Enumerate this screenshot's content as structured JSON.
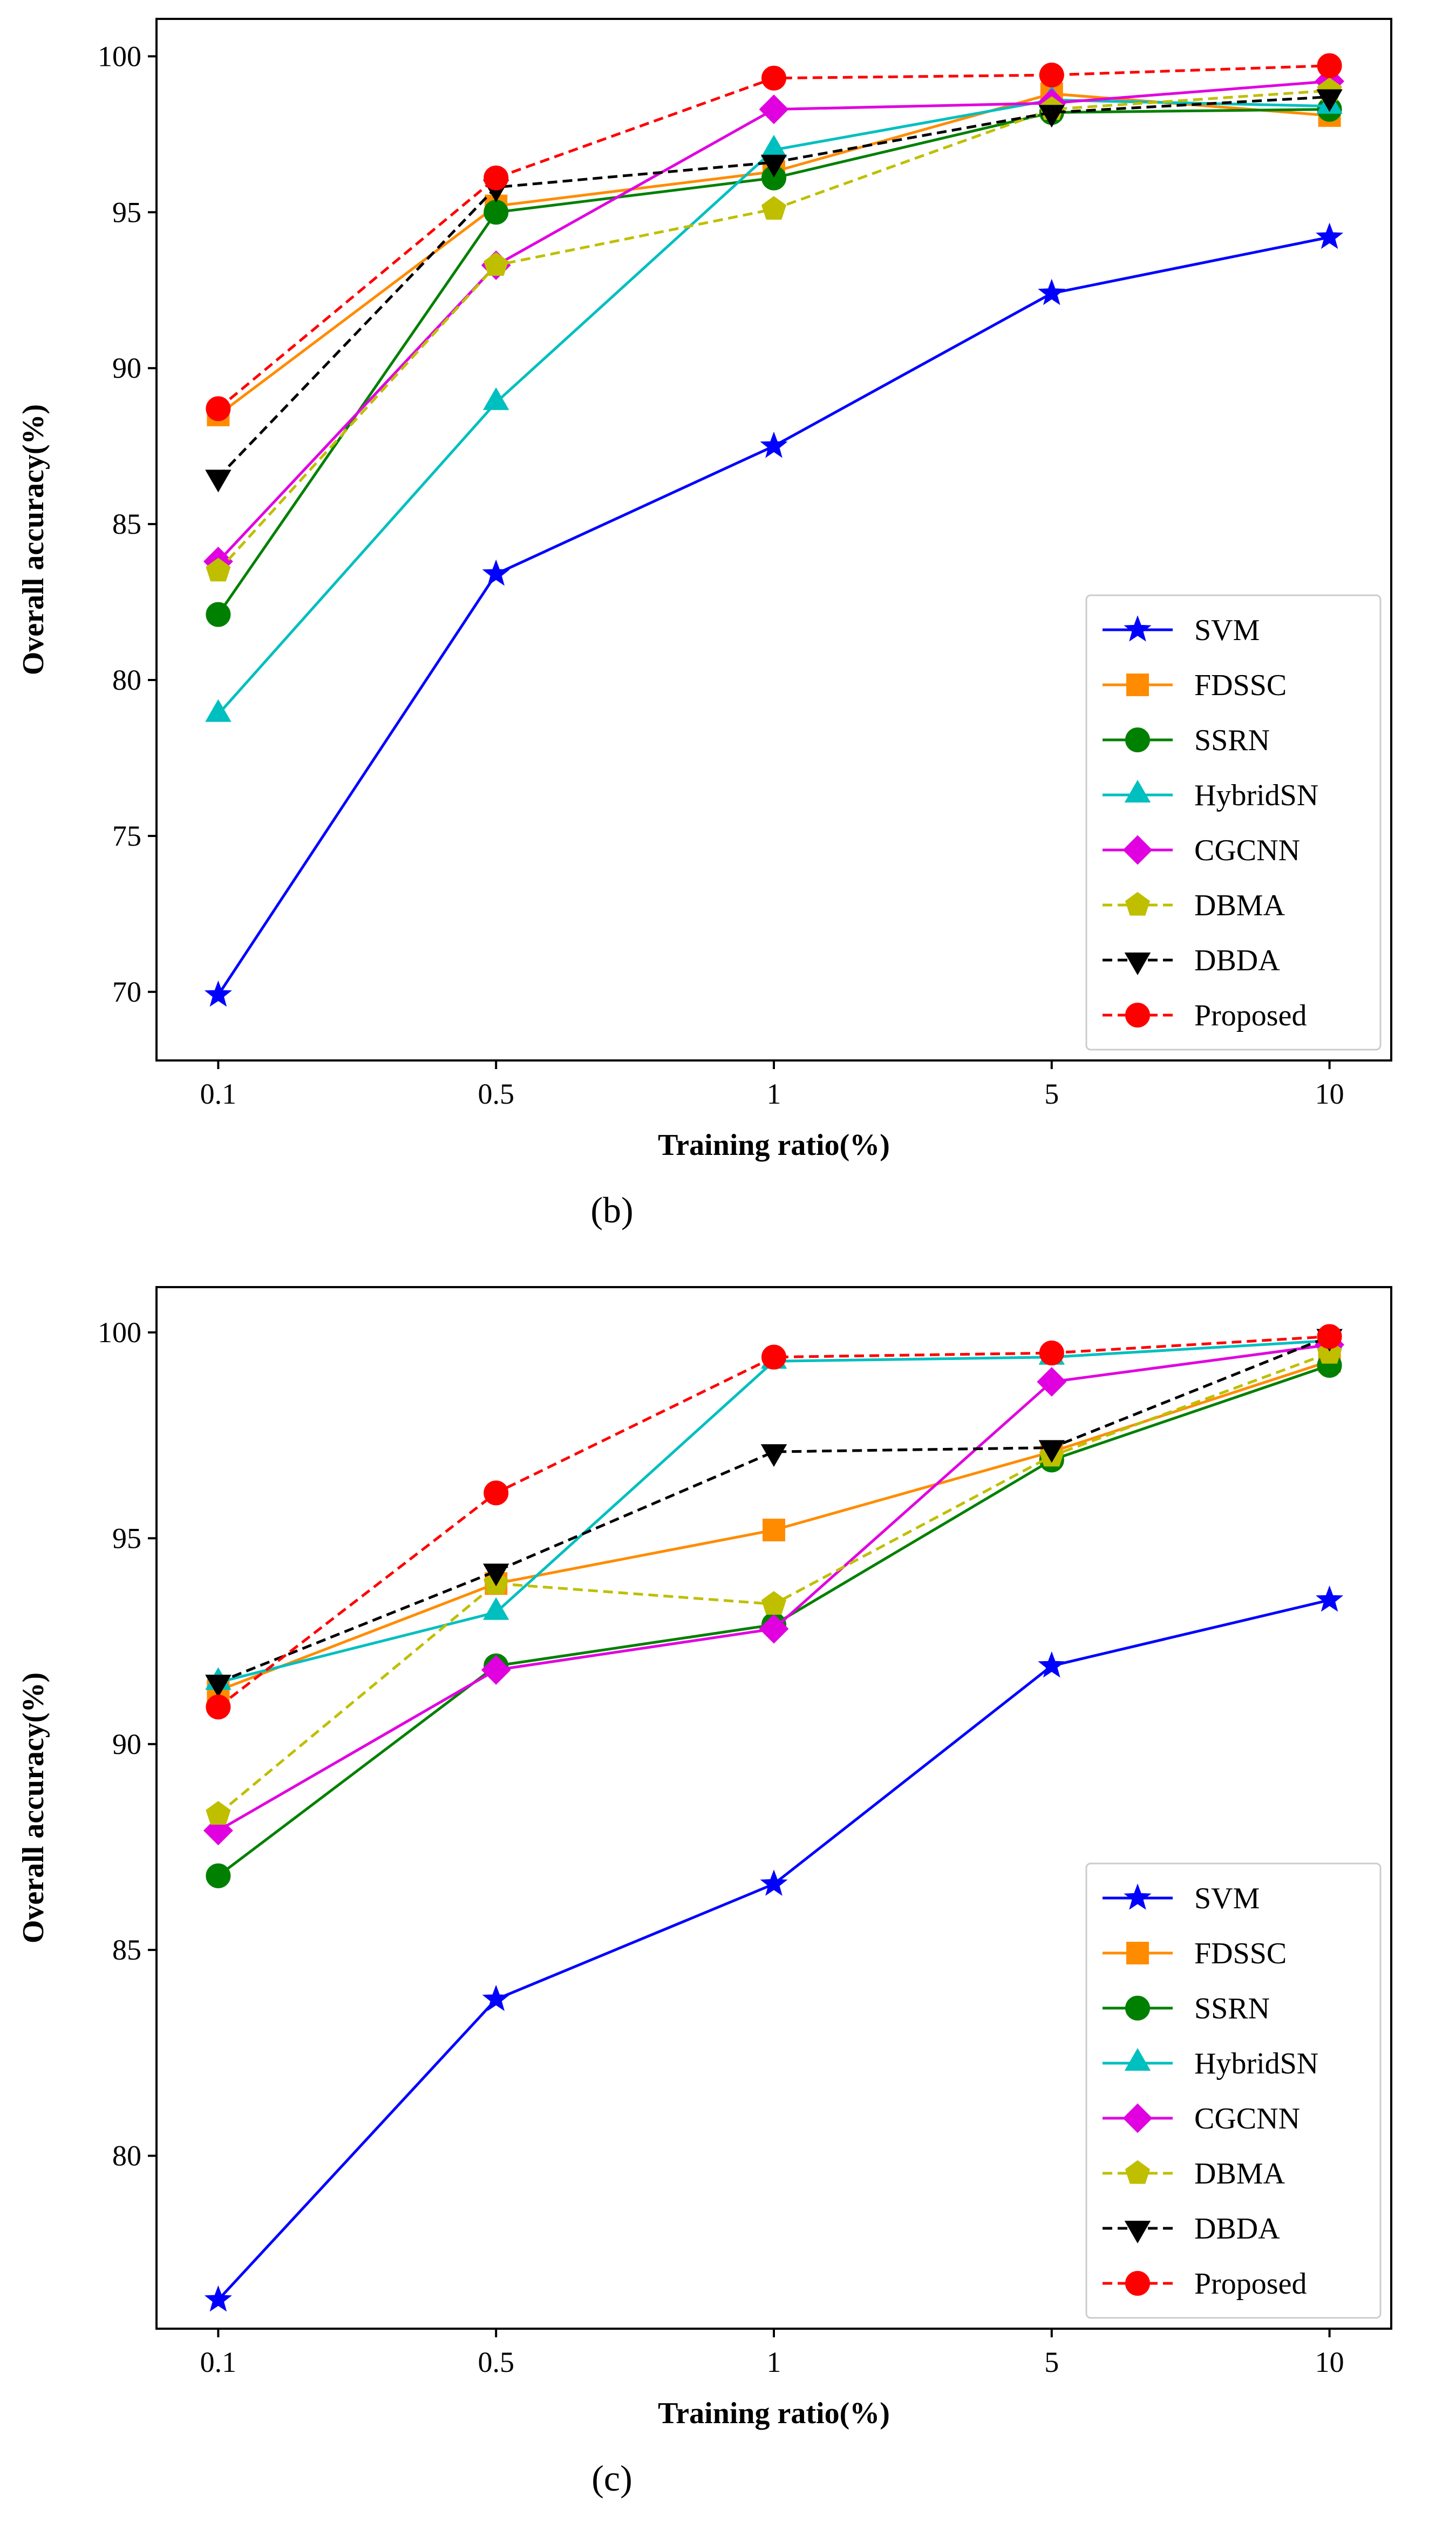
{
  "chart_data": [
    {
      "type": "line",
      "caption": "b",
      "xlabel": "Training ratio(%)",
      "ylabel": "Overall accuracy(%)",
      "categories": [
        "0.1",
        "0.5",
        "1",
        "5",
        "10"
      ],
      "ylim": [
        67.8,
        101.2
      ],
      "yticks": [
        70,
        75,
        80,
        85,
        90,
        95,
        100
      ],
      "legend_position": "lower-right",
      "series": [
        {
          "name": "SVM",
          "color": "#0000ff",
          "marker": "star",
          "dash": "solid",
          "values": [
            69.9,
            83.4,
            87.5,
            92.4,
            94.2
          ]
        },
        {
          "name": "FDSSC",
          "color": "#ff8c00",
          "marker": "square",
          "dash": "solid",
          "values": [
            88.5,
            95.2,
            96.3,
            98.8,
            98.1
          ]
        },
        {
          "name": "SSRN",
          "color": "#008000",
          "marker": "circle",
          "dash": "solid",
          "values": [
            82.1,
            95.0,
            96.1,
            98.2,
            98.3
          ]
        },
        {
          "name": "HybridSN",
          "color": "#00bfbf",
          "marker": "triangle-up",
          "dash": "solid",
          "values": [
            78.9,
            88.9,
            97.0,
            98.6,
            98.4
          ]
        },
        {
          "name": "CGCNN",
          "color": "#e000e0",
          "marker": "diamond",
          "dash": "solid",
          "values": [
            83.8,
            93.3,
            98.3,
            98.5,
            99.2
          ]
        },
        {
          "name": "DBMA",
          "color": "#bfbf00",
          "marker": "pentagon",
          "dash": "dashed",
          "values": [
            83.5,
            93.3,
            95.1,
            98.3,
            98.9
          ]
        },
        {
          "name": "DBDA",
          "color": "#000000",
          "marker": "triangle-down",
          "dash": "dashed",
          "values": [
            86.5,
            95.8,
            96.6,
            98.2,
            98.7
          ]
        },
        {
          "name": "Proposed",
          "color": "#ff0000",
          "marker": "circle",
          "dash": "dashed",
          "values": [
            88.7,
            96.1,
            99.3,
            99.4,
            99.7
          ]
        }
      ]
    },
    {
      "type": "line",
      "caption": "c",
      "xlabel": "Training ratio(%)",
      "ylabel": "Overall accuracy(%)",
      "categories": [
        "0.1",
        "0.5",
        "1",
        "5",
        "10"
      ],
      "ylim": [
        75.8,
        101.1
      ],
      "yticks": [
        80,
        85,
        90,
        95,
        100
      ],
      "legend_position": "lower-right",
      "series": [
        {
          "name": "SVM",
          "color": "#0000ff",
          "marker": "star",
          "dash": "solid",
          "values": [
            76.5,
            83.8,
            86.6,
            91.9,
            93.5
          ]
        },
        {
          "name": "FDSSC",
          "color": "#ff8c00",
          "marker": "square",
          "dash": "solid",
          "values": [
            91.3,
            93.9,
            95.2,
            97.1,
            99.3
          ]
        },
        {
          "name": "SSRN",
          "color": "#008000",
          "marker": "circle",
          "dash": "solid",
          "values": [
            86.8,
            91.9,
            92.9,
            96.9,
            99.2
          ]
        },
        {
          "name": "HybridSN",
          "color": "#00bfbf",
          "marker": "triangle-up",
          "dash": "solid",
          "values": [
            91.5,
            93.2,
            99.3,
            99.4,
            99.8
          ]
        },
        {
          "name": "CGCNN",
          "color": "#e000e0",
          "marker": "diamond",
          "dash": "solid",
          "values": [
            87.9,
            91.8,
            92.8,
            98.8,
            99.7
          ]
        },
        {
          "name": "DBMA",
          "color": "#bfbf00",
          "marker": "pentagon",
          "dash": "dashed",
          "values": [
            88.3,
            93.9,
            93.4,
            97.0,
            99.5
          ]
        },
        {
          "name": "DBDA",
          "color": "#000000",
          "marker": "triangle-down",
          "dash": "dashed",
          "values": [
            91.5,
            94.2,
            97.1,
            97.2,
            99.9
          ]
        },
        {
          "name": "Proposed",
          "color": "#ff0000",
          "marker": "circle",
          "dash": "dashed",
          "values": [
            90.9,
            96.1,
            99.4,
            99.5,
            99.9
          ]
        }
      ]
    }
  ]
}
